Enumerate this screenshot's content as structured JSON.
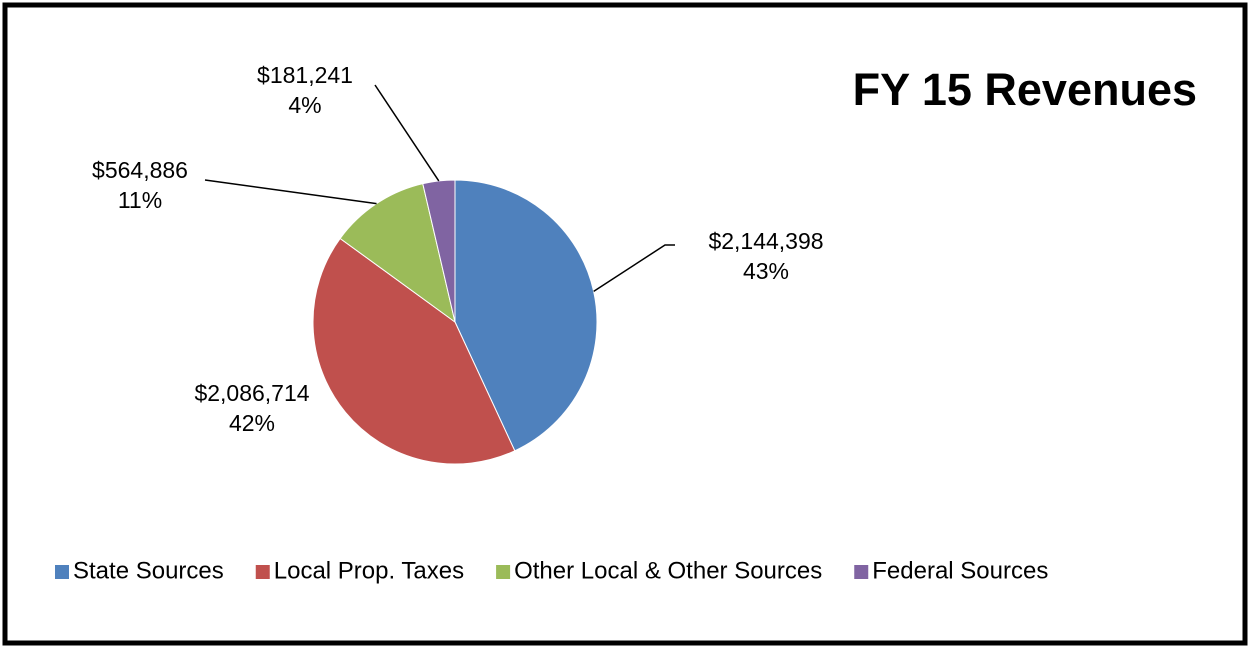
{
  "chart_data": {
    "type": "pie",
    "title": "FY 15 Revenues",
    "categories": [
      "State Sources",
      "Local Prop. Taxes",
      "Other Local & Other Sources",
      "Federal Sources"
    ],
    "values": [
      2144398,
      2086714,
      564886,
      181241
    ],
    "value_labels": [
      "$2,144,398",
      "$2,086,714",
      "$564,886",
      "$181,241"
    ],
    "percent_labels": [
      "43%",
      "42%",
      "11%",
      "4%"
    ],
    "colors": [
      "#4f81bd",
      "#c0504d",
      "#9bbb59",
      "#8064a2"
    ],
    "legend": "bottom"
  }
}
